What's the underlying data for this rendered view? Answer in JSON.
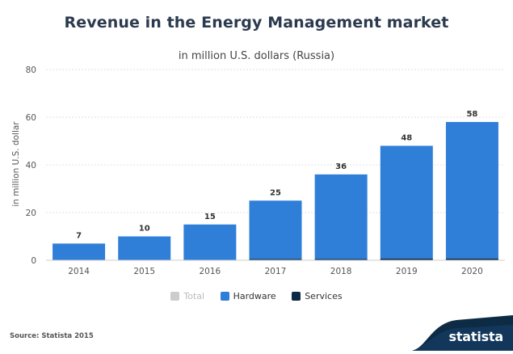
{
  "title": "Revenue in the Energy Management market",
  "subtitle": "in million U.S. dollars (Russia)",
  "source": "Source: Statista 2015",
  "brand": "statista",
  "legend": [
    {
      "label": "Total",
      "color": "#cccccc",
      "muted": true
    },
    {
      "label": "Hardware",
      "color": "#2f7ed8",
      "muted": false
    },
    {
      "label": "Services",
      "color": "#0d2b45",
      "muted": false
    }
  ],
  "chart_data": {
    "type": "bar",
    "title": "Revenue in the Energy Management market",
    "subtitle": "in million U.S. dollars (Russia)",
    "xlabel": "",
    "ylabel": "in million U.S. dollar",
    "categories": [
      "2014",
      "2015",
      "2016",
      "2017",
      "2018",
      "2019",
      "2020"
    ],
    "series": [
      {
        "name": "Hardware",
        "values": [
          7,
          10,
          15,
          24.5,
          35.5,
          47.3,
          57.3
        ]
      },
      {
        "name": "Services",
        "values": [
          0,
          0,
          0,
          0.5,
          0.5,
          0.7,
          0.7
        ]
      }
    ],
    "data_labels": [
      "7",
      "10",
      "15",
      "25",
      "36",
      "48",
      "58"
    ],
    "ylim": [
      0,
      80
    ],
    "yticks": [
      0,
      20,
      40,
      60,
      80
    ],
    "grid": true,
    "legend_position": "bottom"
  }
}
